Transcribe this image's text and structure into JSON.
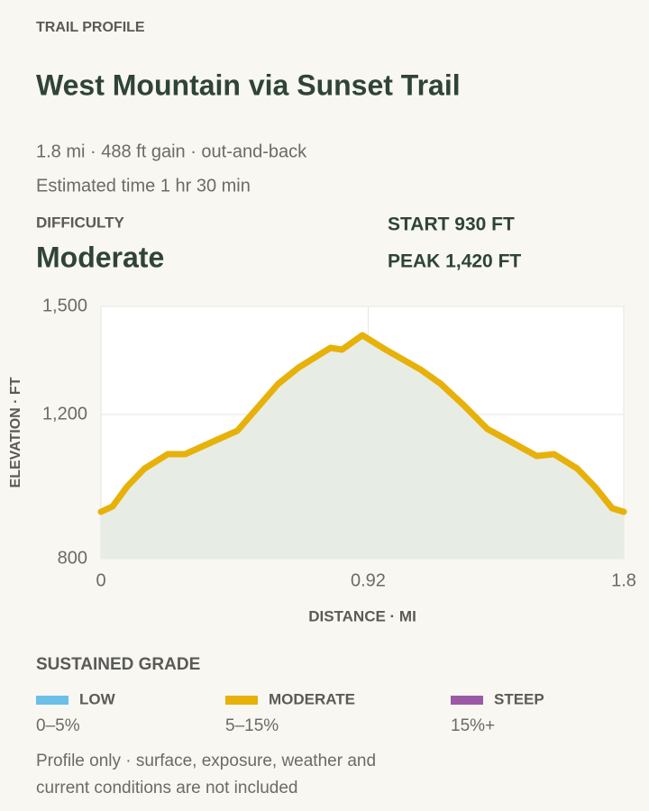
{
  "header": {
    "eyebrow": "TRAIL PROFILE",
    "title": "West Mountain via Sunset Trail",
    "stats": "1.8 mi · 488 ft gain · out-and-back",
    "time": "Estimated time 1 hr 30 min",
    "difficulty_label": "DIFFICULTY",
    "difficulty": "Moderate",
    "start": "START 930 FT",
    "peak": "PEAK 1,420 FT"
  },
  "chart_data": {
    "type": "line",
    "x_label": "DISTANCE · MI",
    "y_label": "ELEVATION · FT",
    "x": [
      0,
      0.04,
      0.09,
      0.15,
      0.23,
      0.29,
      0.4,
      0.47,
      0.54,
      0.61,
      0.68,
      0.72,
      0.79,
      0.83,
      0.9,
      0.98,
      1.1,
      1.17,
      1.25,
      1.33,
      1.41,
      1.5,
      1.56,
      1.64,
      1.7,
      1.76,
      1.8
    ],
    "series": [
      {
        "color": "#e8b10a",
        "values": [
          930,
          945,
          1000,
          1050,
          1090,
          1090,
          1130,
          1155,
          1220,
          1285,
          1330,
          1350,
          1385,
          1380,
          1420,
          1380,
          1325,
          1285,
          1225,
          1160,
          1125,
          1085,
          1090,
          1050,
          1000,
          940,
          930
        ]
      }
    ],
    "area_color": "#e7ede5",
    "xlim": [
      0,
      1.8
    ],
    "ylim": [
      800,
      1500
    ],
    "xticks": [
      0,
      0.92,
      1.8
    ],
    "yticks": [
      800,
      {
        "value": 1200,
        "label": "1,200"
      },
      {
        "value": 1500,
        "label": "1,500"
      }
    ],
    "grid": true
  },
  "grade_legend": {
    "title": "SUSTAINED GRADE",
    "items": [
      {
        "name": "LOW",
        "range": "0–5%",
        "color": "#6cc0e8"
      },
      {
        "name": "MODERATE",
        "range": "5–15%",
        "color": "#e8b10a"
      },
      {
        "name": "STEEP",
        "range": "15%+",
        "color": "#9b59a6"
      }
    ]
  },
  "footnote": [
    "Profile only · surface, exposure, weather and",
    "current conditions are not included"
  ]
}
